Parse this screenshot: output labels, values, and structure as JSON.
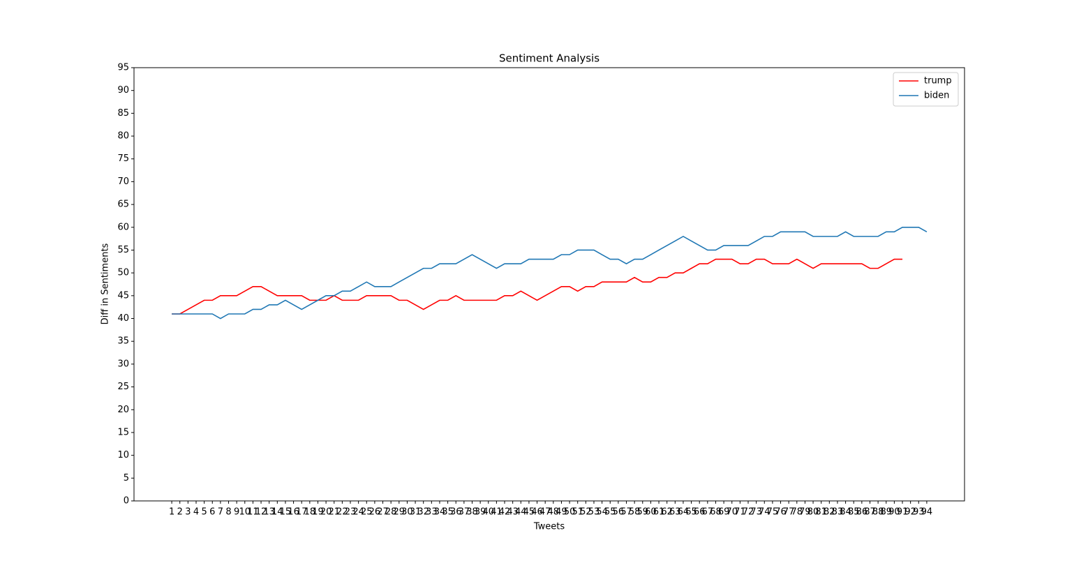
{
  "chart_data": {
    "type": "line",
    "title": "Sentiment Analysis",
    "xlabel": "Tweets",
    "ylabel": "Diff in Sentiments",
    "x": [
      1,
      2,
      3,
      4,
      5,
      6,
      7,
      8,
      9,
      10,
      11,
      12,
      13,
      14,
      15,
      16,
      17,
      18,
      19,
      20,
      21,
      22,
      23,
      24,
      25,
      26,
      27,
      28,
      29,
      30,
      31,
      32,
      33,
      34,
      35,
      36,
      37,
      38,
      39,
      40,
      41,
      42,
      43,
      44,
      45,
      46,
      47,
      48,
      49,
      50,
      51,
      52,
      53,
      54,
      55,
      56,
      57,
      58,
      59,
      60,
      61,
      62,
      63,
      64,
      65,
      66,
      67,
      68,
      69,
      70,
      71,
      72,
      73,
      74,
      75,
      76,
      77,
      78,
      79,
      80,
      81,
      82,
      83,
      84,
      85,
      86,
      87,
      88,
      89,
      90,
      91,
      92,
      93,
      94
    ],
    "series": [
      {
        "name": "trump",
        "color": "#ff0000",
        "values": [
          41,
          41,
          42,
          43,
          44,
          44,
          45,
          45,
          45,
          46,
          47,
          47,
          46,
          45,
          45,
          45,
          45,
          44,
          44,
          44,
          45,
          44,
          44,
          44,
          45,
          45,
          45,
          45,
          44,
          44,
          43,
          42,
          43,
          44,
          44,
          45,
          44,
          44,
          44,
          44,
          44,
          45,
          45,
          46,
          45,
          44,
          45,
          46,
          47,
          47,
          46,
          47,
          47,
          48,
          48,
          48,
          48,
          49,
          48,
          48,
          49,
          49,
          50,
          50,
          51,
          52,
          52,
          53,
          53,
          53,
          52,
          52,
          53,
          53,
          52,
          52,
          52,
          53,
          52,
          51,
          52,
          52,
          52,
          52,
          52,
          52,
          51,
          51,
          52,
          53,
          53,
          null,
          null,
          null
        ]
      },
      {
        "name": "biden",
        "color": "#1f77b4",
        "values": [
          41,
          41,
          41,
          41,
          41,
          41,
          40,
          41,
          41,
          41,
          42,
          42,
          43,
          43,
          44,
          43,
          42,
          43,
          44,
          45,
          45,
          46,
          46,
          47,
          48,
          47,
          47,
          47,
          48,
          49,
          50,
          51,
          51,
          52,
          52,
          52,
          53,
          54,
          53,
          52,
          51,
          52,
          52,
          52,
          53,
          53,
          53,
          53,
          54,
          54,
          55,
          55,
          55,
          54,
          53,
          53,
          52,
          53,
          53,
          54,
          55,
          56,
          57,
          58,
          57,
          56,
          55,
          55,
          56,
          56,
          56,
          56,
          57,
          58,
          58,
          59,
          59,
          59,
          59,
          58,
          58,
          58,
          58,
          59,
          58,
          58,
          58,
          58,
          59,
          59,
          60,
          60,
          60,
          59
        ]
      }
    ],
    "xlim": [
      -3.65,
      98.65
    ],
    "xticks": [
      1,
      2,
      3,
      4,
      5,
      6,
      7,
      8,
      9,
      10,
      11,
      12,
      13,
      14,
      15,
      16,
      17,
      18,
      19,
      20,
      21,
      22,
      23,
      24,
      25,
      26,
      27,
      28,
      29,
      30,
      31,
      32,
      33,
      34,
      35,
      36,
      37,
      38,
      39,
      40,
      41,
      42,
      43,
      44,
      45,
      46,
      47,
      48,
      49,
      50,
      51,
      52,
      53,
      54,
      55,
      56,
      57,
      58,
      59,
      60,
      61,
      62,
      63,
      64,
      65,
      66,
      67,
      68,
      69,
      70,
      71,
      72,
      73,
      74,
      75,
      76,
      77,
      78,
      79,
      80,
      81,
      82,
      83,
      84,
      85,
      86,
      87,
      88,
      89,
      90,
      91,
      92,
      93,
      94
    ],
    "ylim": [
      0,
      95
    ],
    "yticks": [
      0,
      5,
      10,
      15,
      20,
      25,
      30,
      35,
      40,
      45,
      50,
      55,
      60,
      65,
      70,
      75,
      80,
      85,
      90,
      95
    ],
    "legend": "upper right"
  }
}
